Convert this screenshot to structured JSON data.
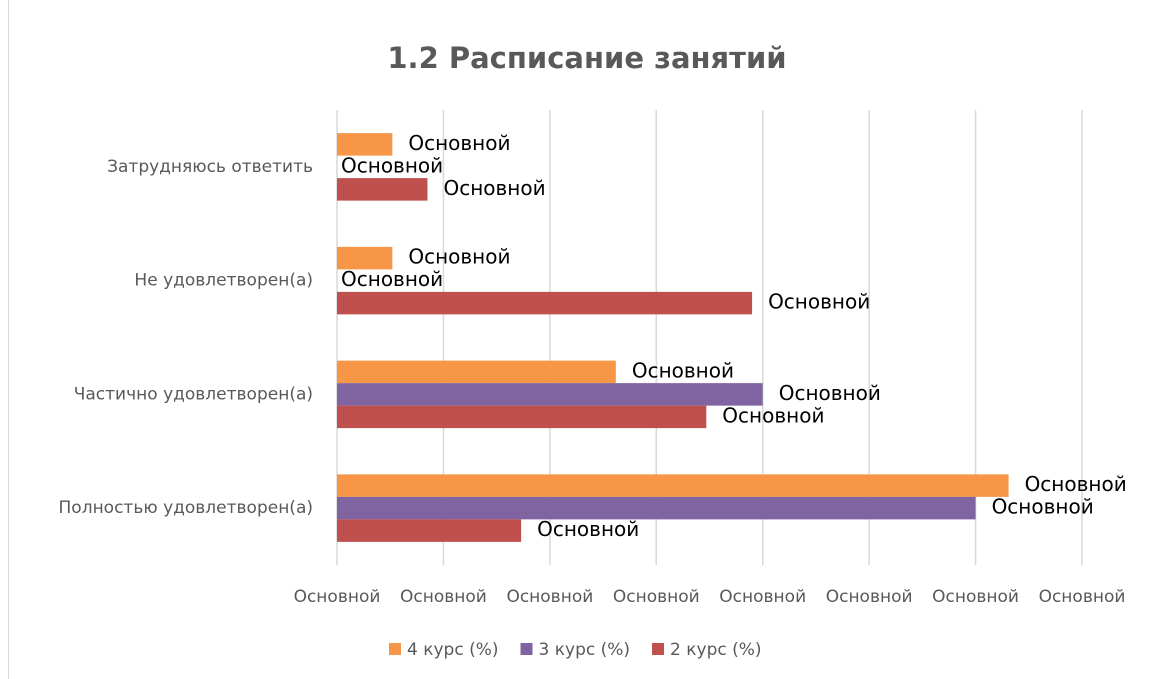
{
  "chart_data": {
    "type": "hbar",
    "title": "1.2 Расписание занятий",
    "categories": [
      "Затрудняюсь ответить",
      "Не удовлетворен(а)",
      "Частично удовлетворен(а)",
      "Полностью удовлетворен(а)"
    ],
    "series": [
      {
        "name": "4 курс (%)",
        "color": "#f79646",
        "values": [
          5.2,
          5.2,
          26.2,
          63.1
        ],
        "value_labels": [
          "Основной",
          "Основной",
          "Основной",
          "Основной"
        ]
      },
      {
        "name": "3 курс (%)",
        "color": "#8064a2",
        "values": [
          0,
          0,
          40,
          60
        ],
        "value_labels": [
          "Основной",
          "Основной",
          "Основной",
          "Основной"
        ]
      },
      {
        "name": "2 курс (%)",
        "color": "#c0504d",
        "values": [
          8.5,
          39,
          34.7,
          17.3
        ],
        "value_labels": [
          "Основной",
          "Основной",
          "Основной",
          "Основной"
        ]
      }
    ],
    "xlim": [
      0,
      70
    ],
    "xticks": [
      {
        "value": 0,
        "label": "Основной"
      },
      {
        "value": 10,
        "label": "Основной"
      },
      {
        "value": 20,
        "label": "Основной"
      },
      {
        "value": 30,
        "label": "Основной"
      },
      {
        "value": 40,
        "label": "Основной"
      },
      {
        "value": 50,
        "label": "Основной"
      },
      {
        "value": 60,
        "label": "Основной"
      },
      {
        "value": 70,
        "label": "Основной"
      }
    ],
    "grid": true,
    "legend": "bottom"
  }
}
